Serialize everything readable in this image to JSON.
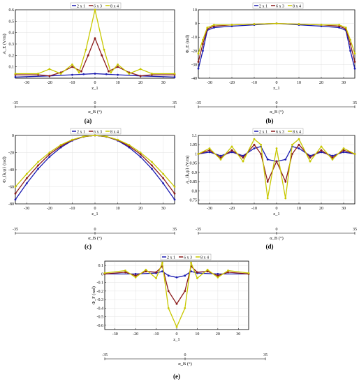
{
  "colors": {
    "s2x1": "#1a1ab0",
    "s6x3": "#8b1a1a",
    "s8x4": "#c8c800",
    "grid": "#e2e2e2"
  },
  "legend": [
    "2 x 1",
    "6 x 3",
    "8 x 4"
  ],
  "chart_data": [
    {
      "panel": "(a)",
      "type": "line",
      "ylabel": "A_E (V/m)",
      "xlabel": "z_1",
      "xlim": [
        -35,
        35
      ],
      "ylim": [
        0,
        0.6
      ],
      "xticks": [
        -30,
        -20,
        -10,
        0,
        10,
        20,
        30
      ],
      "yticks": [
        0.1,
        0.2,
        0.3,
        0.4,
        0.5,
        0.6
      ],
      "yticklabels": [
        "0.1",
        "0.2",
        "0.3",
        "0.4",
        "0.5",
        "0.6"
      ],
      "secondary_axis": {
        "label": "α_B (°)",
        "ticks": [
          "-35",
          "0",
          "35"
        ]
      },
      "series": [
        {
          "name": "2 x 1",
          "x": [
            -35,
            -20,
            -10,
            -5,
            0,
            5,
            10,
            20,
            35
          ],
          "values": [
            0.01,
            0.02,
            0.03,
            0.035,
            0.04,
            0.035,
            0.03,
            0.02,
            0.01
          ]
        },
        {
          "name": "6 x 3",
          "x": [
            -35,
            -25,
            -20,
            -15,
            -10,
            -6,
            -3,
            0,
            3,
            6,
            10,
            15,
            20,
            25,
            35
          ],
          "values": [
            0.03,
            0.03,
            0.02,
            0.05,
            0.1,
            0.06,
            0.2,
            0.35,
            0.2,
            0.06,
            0.1,
            0.05,
            0.02,
            0.03,
            0.03
          ]
        },
        {
          "name": "8 x 4",
          "x": [
            -35,
            -25,
            -20,
            -15,
            -10,
            -7,
            -4,
            0,
            4,
            7,
            10,
            15,
            20,
            25,
            35
          ],
          "values": [
            0.04,
            0.04,
            0.08,
            0.04,
            0.12,
            0.05,
            0.25,
            0.6,
            0.25,
            0.05,
            0.12,
            0.04,
            0.08,
            0.04,
            0.04
          ]
        }
      ]
    },
    {
      "panel": "(b)",
      "type": "line",
      "ylabel": "Φ_E (rad)",
      "xlabel": "z_1",
      "xlim": [
        -35,
        35
      ],
      "ylim": [
        -40,
        10
      ],
      "xticks": [
        -30,
        -20,
        -10,
        0,
        10,
        20,
        30
      ],
      "yticks": [
        -40,
        -30,
        -20,
        -10,
        0,
        10
      ],
      "yticklabels": [
        "-40",
        "-30",
        "-20",
        "-10",
        "0",
        "10"
      ],
      "secondary_axis": {
        "label": "α_B (°)",
        "ticks": [
          "-35",
          "0",
          "35"
        ]
      },
      "series": [
        {
          "name": "2 x 1",
          "x": [
            -35,
            -33,
            -31,
            -28,
            -20,
            -10,
            0,
            10,
            20,
            28,
            31,
            33,
            35
          ],
          "values": [
            -33,
            -20,
            -5,
            -3,
            -2,
            -1,
            0,
            -1,
            -2,
            -3,
            -5,
            -20,
            -33
          ]
        },
        {
          "name": "6 x 3",
          "x": [
            -35,
            -33,
            -31,
            -28,
            -20,
            -10,
            0,
            10,
            20,
            28,
            31,
            33,
            35
          ],
          "values": [
            -28,
            -15,
            -4,
            -2,
            -1,
            -0.5,
            0,
            -0.5,
            -1,
            -2,
            -4,
            -15,
            -28
          ]
        },
        {
          "name": "8 x 4",
          "x": [
            -35,
            -33,
            -31,
            -28,
            -20,
            -10,
            0,
            10,
            20,
            28,
            31,
            33,
            35
          ],
          "values": [
            -22,
            -12,
            -3,
            -1,
            -1,
            -0.5,
            0,
            -0.5,
            -1,
            -1,
            -3,
            -12,
            -22
          ]
        }
      ]
    },
    {
      "panel": "(c)",
      "type": "line",
      "ylabel": "Φ_{k,ψ} (rad)",
      "xlabel": "z_1",
      "xlim": [
        -35,
        35
      ],
      "ylim": [
        -80,
        0
      ],
      "xticks": [
        -30,
        -20,
        -10,
        0,
        10,
        20,
        30
      ],
      "yticks": [
        -80,
        -60,
        -40,
        -20,
        0
      ],
      "yticklabels": [
        "-80",
        "-60",
        "-40",
        "-20",
        "0"
      ],
      "secondary_axis": {
        "label": "α_B (°)",
        "ticks": [
          "-35",
          "0",
          "35"
        ]
      },
      "series": [
        {
          "name": "2 x 1",
          "x": [
            -35,
            -30,
            -25,
            -20,
            -15,
            -10,
            -5,
            0,
            5,
            10,
            15,
            20,
            25,
            30,
            35
          ],
          "values": [
            -75,
            -56,
            -39,
            -25,
            -14,
            -6,
            -1.5,
            0,
            -1.5,
            -6,
            -14,
            -25,
            -39,
            -56,
            -75
          ]
        },
        {
          "name": "6 x 3",
          "x": [
            -35,
            -30,
            -25,
            -20,
            -15,
            -10,
            -5,
            0,
            5,
            10,
            15,
            20,
            25,
            30,
            35
          ],
          "values": [
            -68,
            -50,
            -35,
            -22,
            -12.5,
            -5.5,
            -1.4,
            0,
            -1.4,
            -5.5,
            -12.5,
            -22,
            -35,
            -50,
            -68
          ]
        },
        {
          "name": "8 x 4",
          "x": [
            -35,
            -30,
            -25,
            -20,
            -15,
            -10,
            -5,
            0,
            5,
            10,
            15,
            20,
            25,
            30,
            35
          ],
          "values": [
            -60,
            -45,
            -31,
            -20,
            -11,
            -5,
            -1.2,
            0,
            -1.2,
            -5,
            -11,
            -20,
            -31,
            -45,
            -60
          ]
        }
      ]
    },
    {
      "panel": "(d)",
      "type": "line",
      "ylabel": "A_{k,ψ} (V/m)",
      "xlabel": "z_1",
      "xlim": [
        -35,
        35
      ],
      "ylim": [
        0.73,
        1.1
      ],
      "xticks": [
        -30,
        -20,
        -10,
        0,
        10,
        20,
        30
      ],
      "yticks": [
        0.75,
        0.8,
        0.85,
        0.9,
        0.95,
        1.0,
        1.05,
        1.1
      ],
      "yticklabels": [
        "0.75",
        "0.8",
        "0.85",
        "0.9",
        "0.95",
        "1",
        "1.05",
        "1.1"
      ],
      "secondary_axis": {
        "label": "α_B (°)",
        "ticks": [
          "-35",
          "0",
          "35"
        ]
      },
      "series": [
        {
          "name": "2 x 1",
          "x": [
            -35,
            -30,
            -25,
            -20,
            -15,
            -10,
            -7,
            -4,
            0,
            4,
            7,
            10,
            15,
            20,
            25,
            30,
            35
          ],
          "values": [
            1.0,
            1.01,
            0.99,
            1.01,
            0.99,
            1.03,
            1.04,
            0.97,
            0.96,
            0.97,
            1.04,
            1.03,
            0.99,
            1.01,
            0.99,
            1.01,
            1.0
          ]
        },
        {
          "name": "6 x 3",
          "x": [
            -35,
            -30,
            -25,
            -20,
            -15,
            -10,
            -7,
            -4,
            0,
            4,
            7,
            10,
            15,
            20,
            25,
            30,
            35
          ],
          "values": [
            1.0,
            1.02,
            0.98,
            1.02,
            0.98,
            1.05,
            1.0,
            0.85,
            0.96,
            0.85,
            1.0,
            1.05,
            0.98,
            1.02,
            0.98,
            1.02,
            1.0
          ]
        },
        {
          "name": "8 x 4",
          "x": [
            -35,
            -30,
            -25,
            -20,
            -15,
            -10,
            -7,
            -4,
            0,
            4,
            7,
            10,
            15,
            20,
            25,
            30,
            35
          ],
          "values": [
            1.0,
            1.03,
            0.97,
            1.04,
            0.96,
            1.08,
            1.05,
            0.76,
            1.03,
            0.76,
            1.05,
            1.08,
            0.96,
            1.04,
            0.97,
            1.03,
            1.0
          ]
        }
      ]
    },
    {
      "panel": "(e)",
      "type": "line",
      "ylabel": "Φ_F (rad)",
      "xlabel": "z_1",
      "xlim": [
        -35,
        35
      ],
      "ylim": [
        -0.65,
        0.15
      ],
      "xticks": [
        -30,
        -20,
        -10,
        0,
        10,
        20,
        30
      ],
      "yticks": [
        -0.6,
        -0.5,
        -0.4,
        -0.3,
        -0.2,
        -0.1,
        0,
        0.1
      ],
      "yticklabels": [
        "-0.6",
        "-0.5",
        "-0.4",
        "-0.3",
        "-0.2",
        "-0.1",
        "0",
        "0.1"
      ],
      "secondary_axis": {
        "label": "α_B (°)",
        "ticks": [
          "-35",
          "0",
          "35"
        ]
      },
      "series": [
        {
          "name": "2 x 1",
          "x": [
            -35,
            -20,
            -10,
            -7,
            -4,
            0,
            4,
            7,
            10,
            20,
            35
          ],
          "values": [
            0,
            0,
            0.01,
            0.03,
            -0.02,
            -0.04,
            -0.02,
            0.03,
            0.01,
            0,
            0
          ]
        },
        {
          "name": "6 x 3",
          "x": [
            -35,
            -25,
            -20,
            -15,
            -10,
            -7,
            -4,
            0,
            4,
            7,
            10,
            15,
            20,
            25,
            35
          ],
          "values": [
            0,
            0.02,
            -0.02,
            0.03,
            0.02,
            0.09,
            -0.2,
            -0.35,
            -0.2,
            0.09,
            0.02,
            0.03,
            -0.02,
            0.02,
            0
          ]
        },
        {
          "name": "8 x 4",
          "x": [
            -35,
            -25,
            -20,
            -15,
            -10,
            -7,
            -4,
            0,
            4,
            7,
            10,
            15,
            20,
            25,
            35
          ],
          "values": [
            0.01,
            0.04,
            -0.04,
            0.05,
            -0.05,
            0.13,
            -0.4,
            -0.62,
            -0.4,
            0.13,
            -0.05,
            0.05,
            -0.04,
            0.04,
            0.01
          ]
        }
      ]
    }
  ]
}
